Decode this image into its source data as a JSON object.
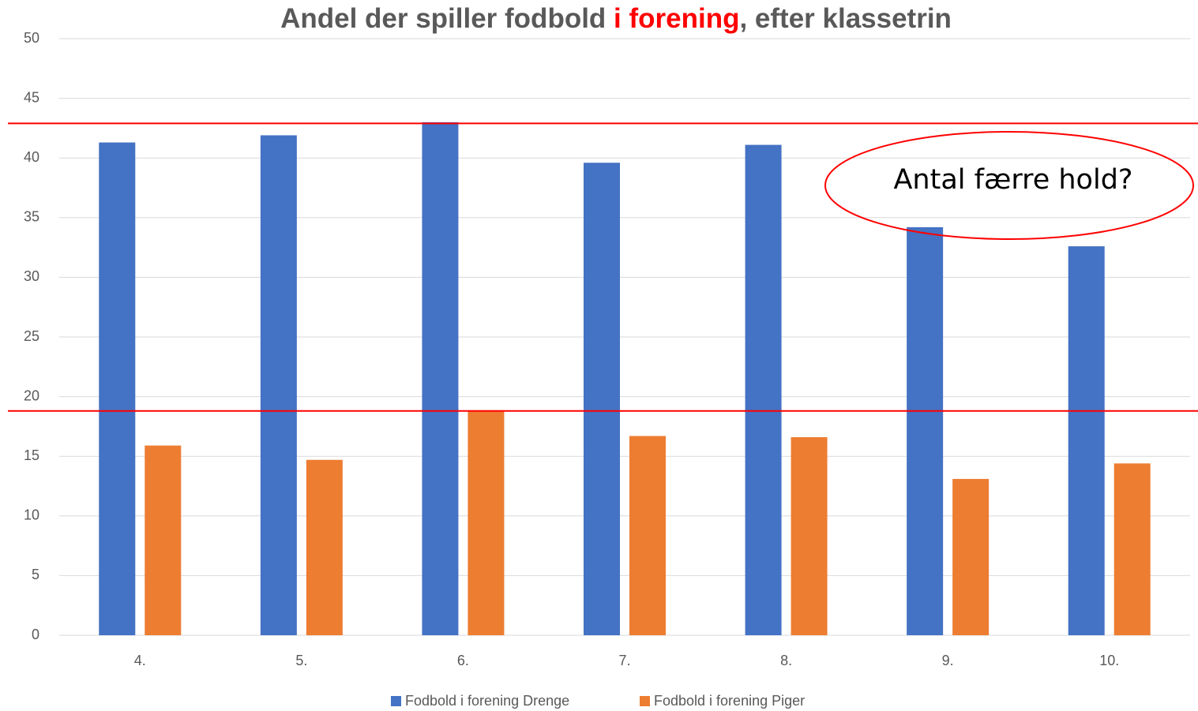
{
  "chart_data": {
    "type": "bar",
    "title_parts": [
      {
        "text": "Andel der spiller fodbold ",
        "color": "#595959"
      },
      {
        "text": "i forening",
        "color": "#ff0000"
      },
      {
        "text": ", efter klassetrin",
        "color": "#595959"
      }
    ],
    "categories": [
      "4.",
      "5.",
      "6.",
      "7.",
      "8.",
      "9.",
      "10."
    ],
    "series": [
      {
        "name": "Fodbold i forening Drenge",
        "color": "#4472c4",
        "values": [
          41.3,
          41.9,
          43,
          39.6,
          41.1,
          34.2,
          32.6
        ]
      },
      {
        "name": "Fodbold i forening Piger",
        "color": "#ed7d31",
        "values": [
          15.9,
          14.7,
          18.8,
          16.7,
          16.6,
          13.1,
          14.4
        ]
      }
    ],
    "ylim": [
      0,
      50
    ],
    "yticks": [
      0,
      5,
      10,
      15,
      20,
      25,
      30,
      35,
      40,
      45,
      50
    ],
    "grid": true,
    "legend": "bottom",
    "reference_lines": {
      "color": "#ff0000",
      "values": [
        42.9,
        18.8
      ]
    },
    "annotation": "Antal færre hold?"
  }
}
